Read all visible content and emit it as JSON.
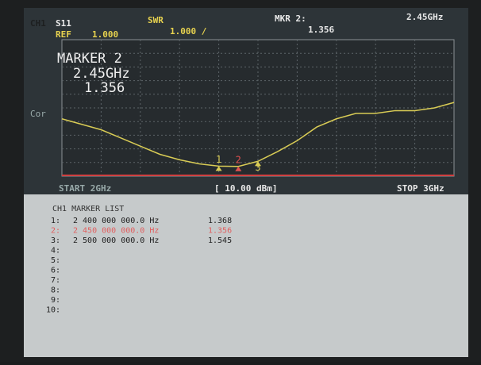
{
  "header": {
    "channel": "CH1",
    "param": "S11",
    "ref_label": "REF",
    "ref_value": "1.000",
    "format": "SWR",
    "scale": "1.000 /",
    "mkr_label": "MKR 2:",
    "mkr_value": "1.356",
    "mkr_freq": "2.45GHz"
  },
  "marker_box": {
    "title": "MARKER 2",
    "freq": "2.45GHz",
    "value": "1.356"
  },
  "side_label": "Cor",
  "footer": {
    "start": "START 2GHz",
    "power": "[ 10.00 dBm]",
    "stop": "STOP 3GHz"
  },
  "chart_data": {
    "type": "line",
    "color": "#d9cc55",
    "x": [
      2.0,
      2.05,
      2.1,
      2.15,
      2.2,
      2.25,
      2.3,
      2.35,
      2.4,
      2.45,
      2.5,
      2.55,
      2.6,
      2.65,
      2.7,
      2.75,
      2.8,
      2.85,
      2.9,
      2.95,
      3.0
    ],
    "values": [
      3.1,
      2.9,
      2.7,
      2.4,
      2.1,
      1.8,
      1.6,
      1.45,
      1.368,
      1.356,
      1.545,
      1.9,
      2.3,
      2.8,
      3.1,
      3.3,
      3.3,
      3.4,
      3.4,
      3.5,
      3.7
    ],
    "xlim": [
      2.0,
      3.0
    ],
    "ylim": [
      1,
      6
    ],
    "markers": [
      {
        "label": "1",
        "x": 2.4,
        "value": 1.368
      },
      {
        "label": "2",
        "x": 2.45,
        "value": 1.356
      },
      {
        "label": "3",
        "x": 2.5,
        "value": 1.545
      }
    ]
  },
  "marker_list": {
    "title": "CH1 MARKER LIST",
    "rows": [
      [
        "1:",
        "2 400 000 000.0 Hz",
        "1.368"
      ],
      [
        "2:",
        "2 450 000 000.0 Hz",
        "1.356"
      ],
      [
        "3:",
        "2 500 000 000.0 Hz",
        "1.545"
      ],
      [
        "4:"
      ],
      [
        "5:"
      ],
      [
        "6:"
      ],
      [
        "7:"
      ],
      [
        "8:"
      ],
      [
        "9:"
      ],
      [
        "10:"
      ]
    ]
  }
}
